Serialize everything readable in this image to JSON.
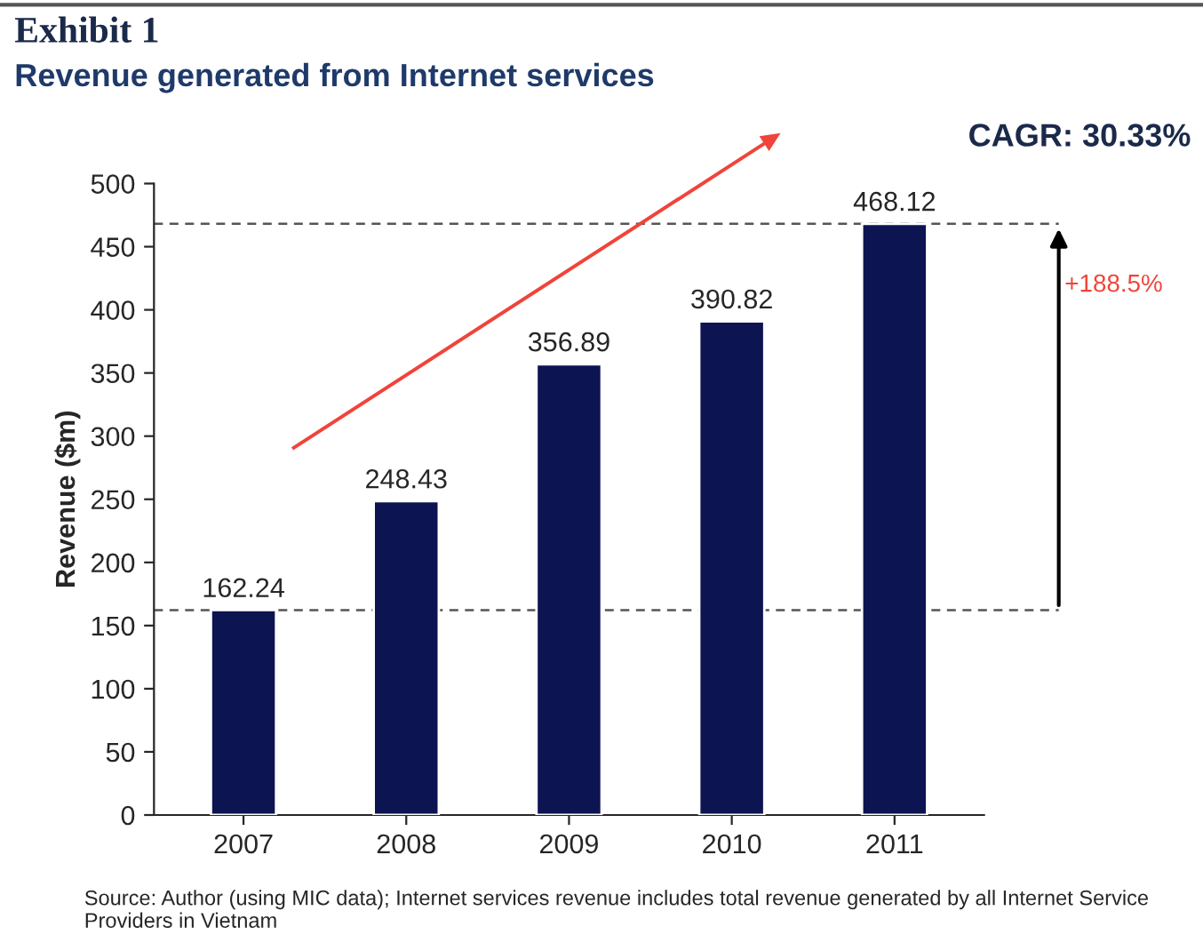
{
  "chart_data": {
    "type": "bar",
    "title": "Exhibit 1",
    "subtitle": "Revenue generated from Internet services",
    "ylabel": "Revenue ($m)",
    "categories": [
      "2007",
      "2008",
      "2009",
      "2010",
      "2011"
    ],
    "values": [
      162.24,
      248.43,
      356.89,
      390.82,
      468.12
    ],
    "color": "#0c1452",
    "ylim": [
      0,
      500
    ],
    "yticks": [
      0,
      50,
      100,
      150,
      200,
      250,
      300,
      350,
      400,
      450,
      500
    ],
    "data_labels": true,
    "grid": false,
    "ref_lines": [
      {
        "axis": "y",
        "value": 162.24,
        "line_style": "dashed",
        "color": "#555555"
      },
      {
        "axis": "y",
        "value": 468.12,
        "line_style": "dashed",
        "color": "#555555"
      }
    ],
    "annotations": [
      "CAGR: 30.33%",
      "+188.5%",
      "Source: Author (using MIC data); Internet services revenue includes total revenue generated by all Internet Service Providers in Vietnam"
    ]
  }
}
